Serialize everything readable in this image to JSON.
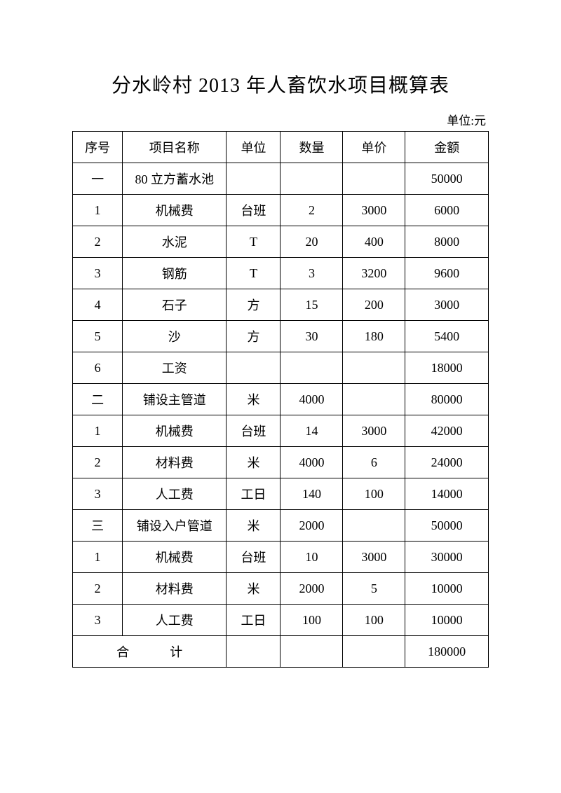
{
  "title": "分水岭村 2013 年人畜饮水项目概算表",
  "unit_label": "单位:元",
  "table": {
    "columns": [
      "序号",
      "项目名称",
      "单位",
      "数量",
      "单价",
      "金额"
    ],
    "rows": [
      [
        "一",
        "80 立方蓄水池",
        "",
        "",
        "",
        "50000"
      ],
      [
        "1",
        "机械费",
        "台班",
        "2",
        "3000",
        "6000"
      ],
      [
        "2",
        "水泥",
        "T",
        "20",
        "400",
        "8000"
      ],
      [
        "3",
        "钢筋",
        "T",
        "3",
        "3200",
        "9600"
      ],
      [
        "4",
        "石子",
        "方",
        "15",
        "200",
        "3000"
      ],
      [
        "5",
        "沙",
        "方",
        "30",
        "180",
        "5400"
      ],
      [
        "6",
        "工资",
        "",
        "",
        "",
        "18000"
      ],
      [
        "二",
        "铺设主管道",
        "米",
        "4000",
        "",
        "80000"
      ],
      [
        "1",
        "机械费",
        "台班",
        "14",
        "3000",
        "42000"
      ],
      [
        "2",
        "材料费",
        "米",
        "4000",
        "6",
        "24000"
      ],
      [
        "3",
        "人工费",
        "工日",
        "140",
        "100",
        "14000"
      ],
      [
        "三",
        "铺设入户管道",
        "米",
        "2000",
        "",
        "50000"
      ],
      [
        "1",
        "机械费",
        "台班",
        "10",
        "3000",
        "30000"
      ],
      [
        "2",
        "材料费",
        "米",
        "2000",
        "5",
        "10000"
      ],
      [
        "3",
        "人工费",
        "工日",
        "100",
        "100",
        "10000"
      ]
    ],
    "footer": {
      "label": "合　计",
      "cells": [
        "",
        "",
        "",
        "180000"
      ]
    }
  }
}
